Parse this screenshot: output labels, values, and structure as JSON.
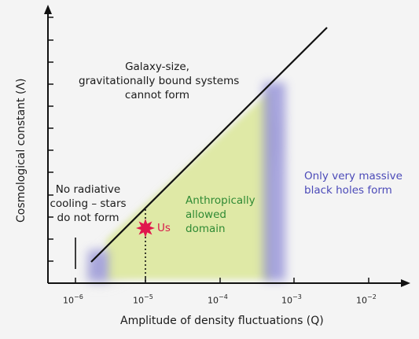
{
  "axes": {
    "x_label": "Amplitude of density fluctuations (Q)",
    "y_label": "Cosmological constant (Λ)",
    "x_ticks": [
      {
        "base": "10",
        "exp": "−6"
      },
      {
        "base": "10",
        "exp": "−5"
      },
      {
        "base": "10",
        "exp": "−4"
      },
      {
        "base": "10",
        "exp": "−3"
      },
      {
        "base": "10",
        "exp": "−2"
      }
    ]
  },
  "regions": {
    "top": [
      "Galaxy-size,",
      "gravitationally bound systems",
      "cannot form"
    ],
    "left": [
      "No radiative",
      "cooling – stars",
      "do not form"
    ],
    "center": [
      "Anthropically",
      "allowed",
      "domain"
    ],
    "right": [
      "Only very massive",
      "black holes form"
    ]
  },
  "marker": {
    "label": "Us"
  },
  "colors": {
    "allowed_fill": "#dfe9a6",
    "edge_purple": "#8d8ad6",
    "marker_red": "#e0174d",
    "green_text": "#2f8a34",
    "purple_text": "#4b4ab8"
  }
}
